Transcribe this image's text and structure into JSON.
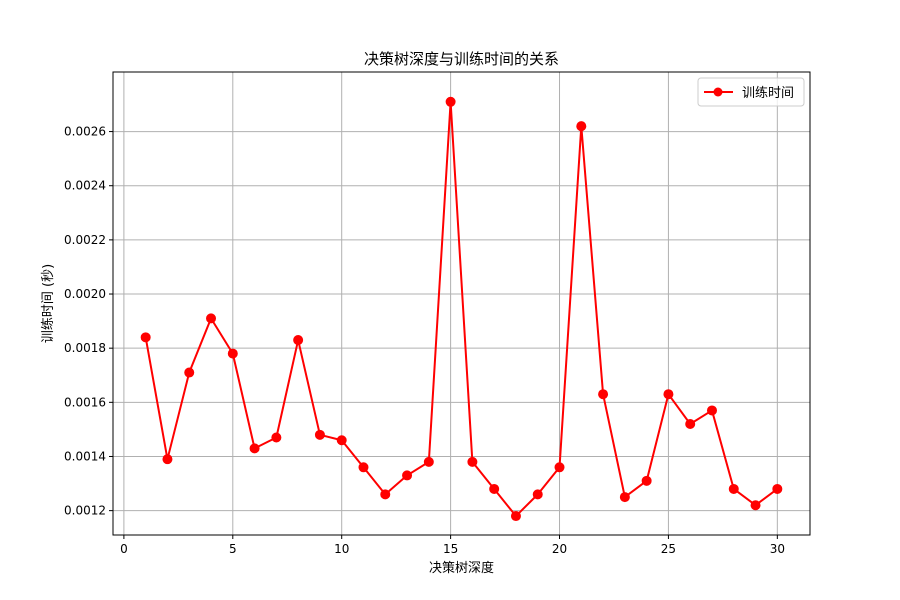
{
  "chart_data": {
    "type": "line",
    "title": "决策树深度与训练时间的关系",
    "xlabel": "决策树深度",
    "ylabel": "训练时间 (秒)",
    "xlim": [
      -0.5,
      31.5
    ],
    "ylim": [
      0.00111,
      0.00282
    ],
    "x_ticks": [
      0,
      5,
      10,
      15,
      20,
      25,
      30
    ],
    "y_ticks": [
      0.0012,
      0.0014,
      0.0016,
      0.0018,
      0.002,
      0.0022,
      0.0024,
      0.0026
    ],
    "y_tick_labels": [
      "0.0012",
      "0.0014",
      "0.0016",
      "0.0018",
      "0.0020",
      "0.0022",
      "0.0024",
      "0.0026"
    ],
    "grid": true,
    "legend_position": "top-right",
    "series": [
      {
        "name": "训练时间",
        "color": "#ff0000",
        "marker": "circle",
        "x": [
          1,
          2,
          3,
          4,
          5,
          6,
          7,
          8,
          9,
          10,
          11,
          12,
          13,
          14,
          15,
          16,
          17,
          18,
          19,
          20,
          21,
          22,
          23,
          24,
          25,
          26,
          27,
          28,
          29,
          30
        ],
        "y": [
          0.00184,
          0.00139,
          0.00171,
          0.00191,
          0.00178,
          0.00143,
          0.00147,
          0.00183,
          0.00148,
          0.00146,
          0.00136,
          0.00126,
          0.00133,
          0.00138,
          0.00271,
          0.00138,
          0.00128,
          0.00118,
          0.00126,
          0.00136,
          0.00262,
          0.00163,
          0.00125,
          0.00131,
          0.00163,
          0.00152,
          0.00157,
          0.00128,
          0.00122,
          0.00128
        ]
      }
    ]
  }
}
